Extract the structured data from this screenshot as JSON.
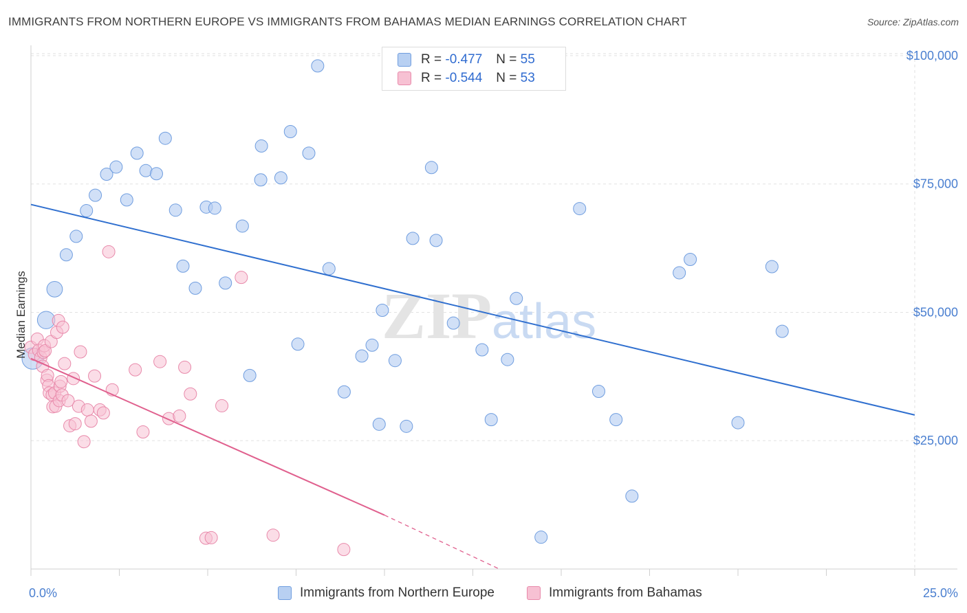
{
  "header": {
    "title": "IMMIGRANTS FROM NORTHERN EUROPE VS IMMIGRANTS FROM BAHAMAS MEDIAN EARNINGS CORRELATION CHART",
    "source": "Source: ZipAtlas.com"
  },
  "legend_top": {
    "rows": [
      {
        "r_label": "R =",
        "r_value": "-0.477",
        "n_label": "N =",
        "n_value": "55"
      },
      {
        "r_label": "R =",
        "r_value": "-0.544",
        "n_label": "N =",
        "n_value": "53"
      }
    ]
  },
  "legend_bottom": {
    "series1": "Immigrants from Northern Europe",
    "series2": "Immigrants from Bahamas"
  },
  "watermark": {
    "zip": "ZIP",
    "atlas": "atlas"
  },
  "colors": {
    "blue": "#4a7fd0",
    "blue_line": "#2f6fcf",
    "blue_fill": "#b8d0f2",
    "pink": "#e0608e",
    "pink_fill": "#f7c1d3"
  },
  "chart_data": {
    "type": "scatter",
    "title": "IMMIGRANTS FROM NORTHERN EUROPE VS IMMIGRANTS FROM BAHAMAS MEDIAN EARNINGS CORRELATION CHART",
    "xlabel": "",
    "ylabel": "Median Earnings",
    "xlim": [
      0,
      25
    ],
    "ylim": [
      0,
      102000
    ],
    "x_tick_labels": [
      "0.0%",
      "25.0%"
    ],
    "y_ticks": [
      25000,
      50000,
      75000,
      100000
    ],
    "y_tick_labels": [
      "$25,000",
      "$50,000",
      "$75,000",
      "$100,000"
    ],
    "grid": true,
    "series": [
      {
        "name": "Immigrants from Northern Europe",
        "color": "#4a7fd0",
        "R": -0.477,
        "N": 55,
        "trend": [
          [
            0,
            71000
          ],
          [
            25,
            30000
          ]
        ],
        "points": [
          [
            0.05,
            41000,
            3
          ],
          [
            0.43,
            48500,
            2
          ],
          [
            0.67,
            54500,
            1.6
          ],
          [
            1.0,
            61200,
            1
          ],
          [
            1.28,
            64800,
            1
          ],
          [
            1.57,
            69800,
            1
          ],
          [
            1.82,
            72800,
            1
          ],
          [
            2.14,
            76900,
            1
          ],
          [
            2.41,
            78300,
            1
          ],
          [
            2.71,
            71900,
            1
          ],
          [
            3.0,
            81000,
            1
          ],
          [
            3.25,
            77600,
            1
          ],
          [
            3.55,
            77000,
            1
          ],
          [
            3.8,
            83900,
            1
          ],
          [
            4.09,
            69900,
            1
          ],
          [
            4.3,
            59000,
            1
          ],
          [
            4.65,
            54700,
            1
          ],
          [
            4.96,
            70500,
            1
          ],
          [
            5.2,
            70300,
            1
          ],
          [
            5.5,
            55700,
            1
          ],
          [
            5.98,
            66800,
            1
          ],
          [
            6.19,
            37700,
            1
          ],
          [
            6.5,
            75800,
            1
          ],
          [
            6.52,
            82400,
            1
          ],
          [
            7.07,
            76200,
            1
          ],
          [
            7.34,
            85200,
            1
          ],
          [
            7.55,
            43800,
            1
          ],
          [
            7.86,
            81000,
            1
          ],
          [
            8.11,
            98000,
            1
          ],
          [
            8.43,
            58500,
            1
          ],
          [
            8.86,
            34500,
            1
          ],
          [
            9.36,
            41500,
            1
          ],
          [
            9.65,
            43600,
            1
          ],
          [
            9.85,
            28200,
            1
          ],
          [
            9.94,
            50400,
            1
          ],
          [
            10.3,
            40600,
            1
          ],
          [
            10.62,
            27800,
            1
          ],
          [
            10.8,
            64400,
            1
          ],
          [
            11.33,
            78200,
            1
          ],
          [
            11.46,
            64000,
            1
          ],
          [
            11.95,
            47900,
            1
          ],
          [
            12.76,
            42700,
            1
          ],
          [
            13.02,
            29100,
            1
          ],
          [
            13.48,
            40800,
            1
          ],
          [
            13.73,
            52700,
            1
          ],
          [
            14.43,
            6200,
            1
          ],
          [
            15.52,
            70200,
            1
          ],
          [
            16.06,
            34600,
            1
          ],
          [
            16.55,
            29100,
            1
          ],
          [
            17.0,
            14200,
            1
          ],
          [
            18.34,
            57700,
            1
          ],
          [
            18.65,
            60300,
            1
          ],
          [
            20.0,
            28500,
            1
          ],
          [
            20.96,
            58900,
            1
          ],
          [
            21.25,
            46300,
            1
          ]
        ]
      },
      {
        "name": "Immigrants from Bahamas",
        "color": "#e0608e",
        "R": -0.544,
        "N": 53,
        "trend": [
          [
            0,
            41000
          ],
          [
            10,
            10500
          ]
        ],
        "trend_dashed": [
          [
            10,
            10500
          ],
          [
            13.25,
            0
          ]
        ],
        "points": [
          [
            0.0,
            43200,
            1
          ],
          [
            0.1,
            41800,
            1
          ],
          [
            0.18,
            44800,
            1
          ],
          [
            0.22,
            42600,
            1
          ],
          [
            0.28,
            41200,
            1
          ],
          [
            0.33,
            39500,
            1
          ],
          [
            0.35,
            42200,
            1
          ],
          [
            0.38,
            43500,
            1
          ],
          [
            0.4,
            42500,
            1
          ],
          [
            0.45,
            36800,
            1
          ],
          [
            0.47,
            37700,
            1
          ],
          [
            0.5,
            35700,
            1
          ],
          [
            0.52,
            34300,
            1
          ],
          [
            0.57,
            44300,
            1
          ],
          [
            0.6,
            33900,
            1
          ],
          [
            0.62,
            31600,
            1
          ],
          [
            0.67,
            34300,
            1
          ],
          [
            0.7,
            31700,
            1
          ],
          [
            0.73,
            46100,
            1
          ],
          [
            0.78,
            48400,
            1
          ],
          [
            0.8,
            32800,
            1
          ],
          [
            0.82,
            35600,
            1
          ],
          [
            0.85,
            36500,
            1
          ],
          [
            0.88,
            33900,
            1
          ],
          [
            0.9,
            47100,
            1
          ],
          [
            0.95,
            40000,
            1
          ],
          [
            1.05,
            32800,
            1
          ],
          [
            1.1,
            27900,
            1
          ],
          [
            1.2,
            37100,
            1
          ],
          [
            1.25,
            28300,
            1
          ],
          [
            1.35,
            31700,
            1
          ],
          [
            1.4,
            42300,
            1
          ],
          [
            1.5,
            24800,
            1
          ],
          [
            1.6,
            31000,
            1
          ],
          [
            1.7,
            28800,
            1
          ],
          [
            1.8,
            37600,
            1
          ],
          [
            1.95,
            31000,
            1
          ],
          [
            2.05,
            30400,
            1
          ],
          [
            2.2,
            61800,
            1
          ],
          [
            2.3,
            34900,
            1
          ],
          [
            2.95,
            38800,
            1
          ],
          [
            3.17,
            26700,
            1
          ],
          [
            3.65,
            40400,
            1
          ],
          [
            3.9,
            29300,
            1
          ],
          [
            4.2,
            29800,
            1
          ],
          [
            4.35,
            39300,
            1
          ],
          [
            4.51,
            34100,
            1
          ],
          [
            4.95,
            6000,
            1
          ],
          [
            5.1,
            6100,
            1
          ],
          [
            5.4,
            31800,
            1
          ],
          [
            5.95,
            56800,
            1
          ],
          [
            6.85,
            6600,
            1
          ],
          [
            8.85,
            3800,
            1
          ]
        ]
      }
    ]
  }
}
